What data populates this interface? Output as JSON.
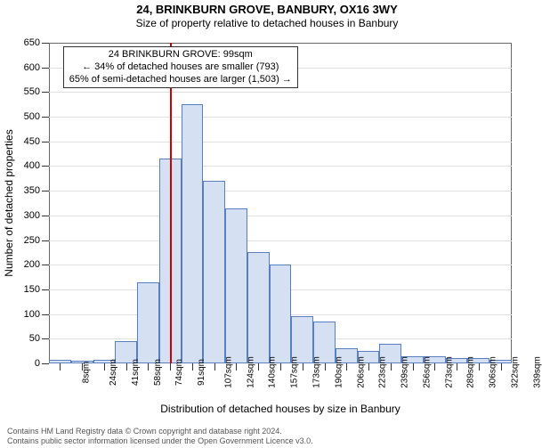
{
  "title": "24, BRINKBURN GROVE, BANBURY, OX16 3WY",
  "subtitle": "Size of property relative to detached houses in Banbury",
  "y_axis_label": "Number of detached properties",
  "x_axis_label": "Distribution of detached houses by size in Banbury",
  "chart": {
    "type": "histogram",
    "ylim": [
      0,
      650
    ],
    "ytick_step": 50,
    "background_color": "#ffffff",
    "grid_color": "#e0e0e0",
    "border_color": "#666666",
    "bar_fill": "#d5e0f2",
    "bar_border": "#5a7fc0",
    "x_labels": [
      "8sqm",
      "24sqm",
      "41sqm",
      "58sqm",
      "74sqm",
      "91sqm",
      "107sqm",
      "124sqm",
      "140sqm",
      "157sqm",
      "173sqm",
      "190sqm",
      "206sqm",
      "223sqm",
      "239sqm",
      "256sqm",
      "273sqm",
      "289sqm",
      "306sqm",
      "322sqm",
      "339sqm"
    ],
    "values": [
      8,
      5,
      8,
      45,
      165,
      415,
      525,
      370,
      315,
      225,
      200,
      95,
      85,
      30,
      25,
      40,
      15,
      15,
      10,
      10,
      8
    ],
    "marker_value": 99,
    "marker_color": "#cc0000"
  },
  "annotation": {
    "line1": "24 BRINKBURN GROVE: 99sqm",
    "line2": "← 34% of detached houses are smaller (793)",
    "line3": "65% of semi-detached houses are larger (1,503) →"
  },
  "footer": {
    "line1": "Contains HM Land Registry data © Crown copyright and database right 2024.",
    "line2": "Contains public sector information licensed under the Open Government Licence v3.0."
  }
}
